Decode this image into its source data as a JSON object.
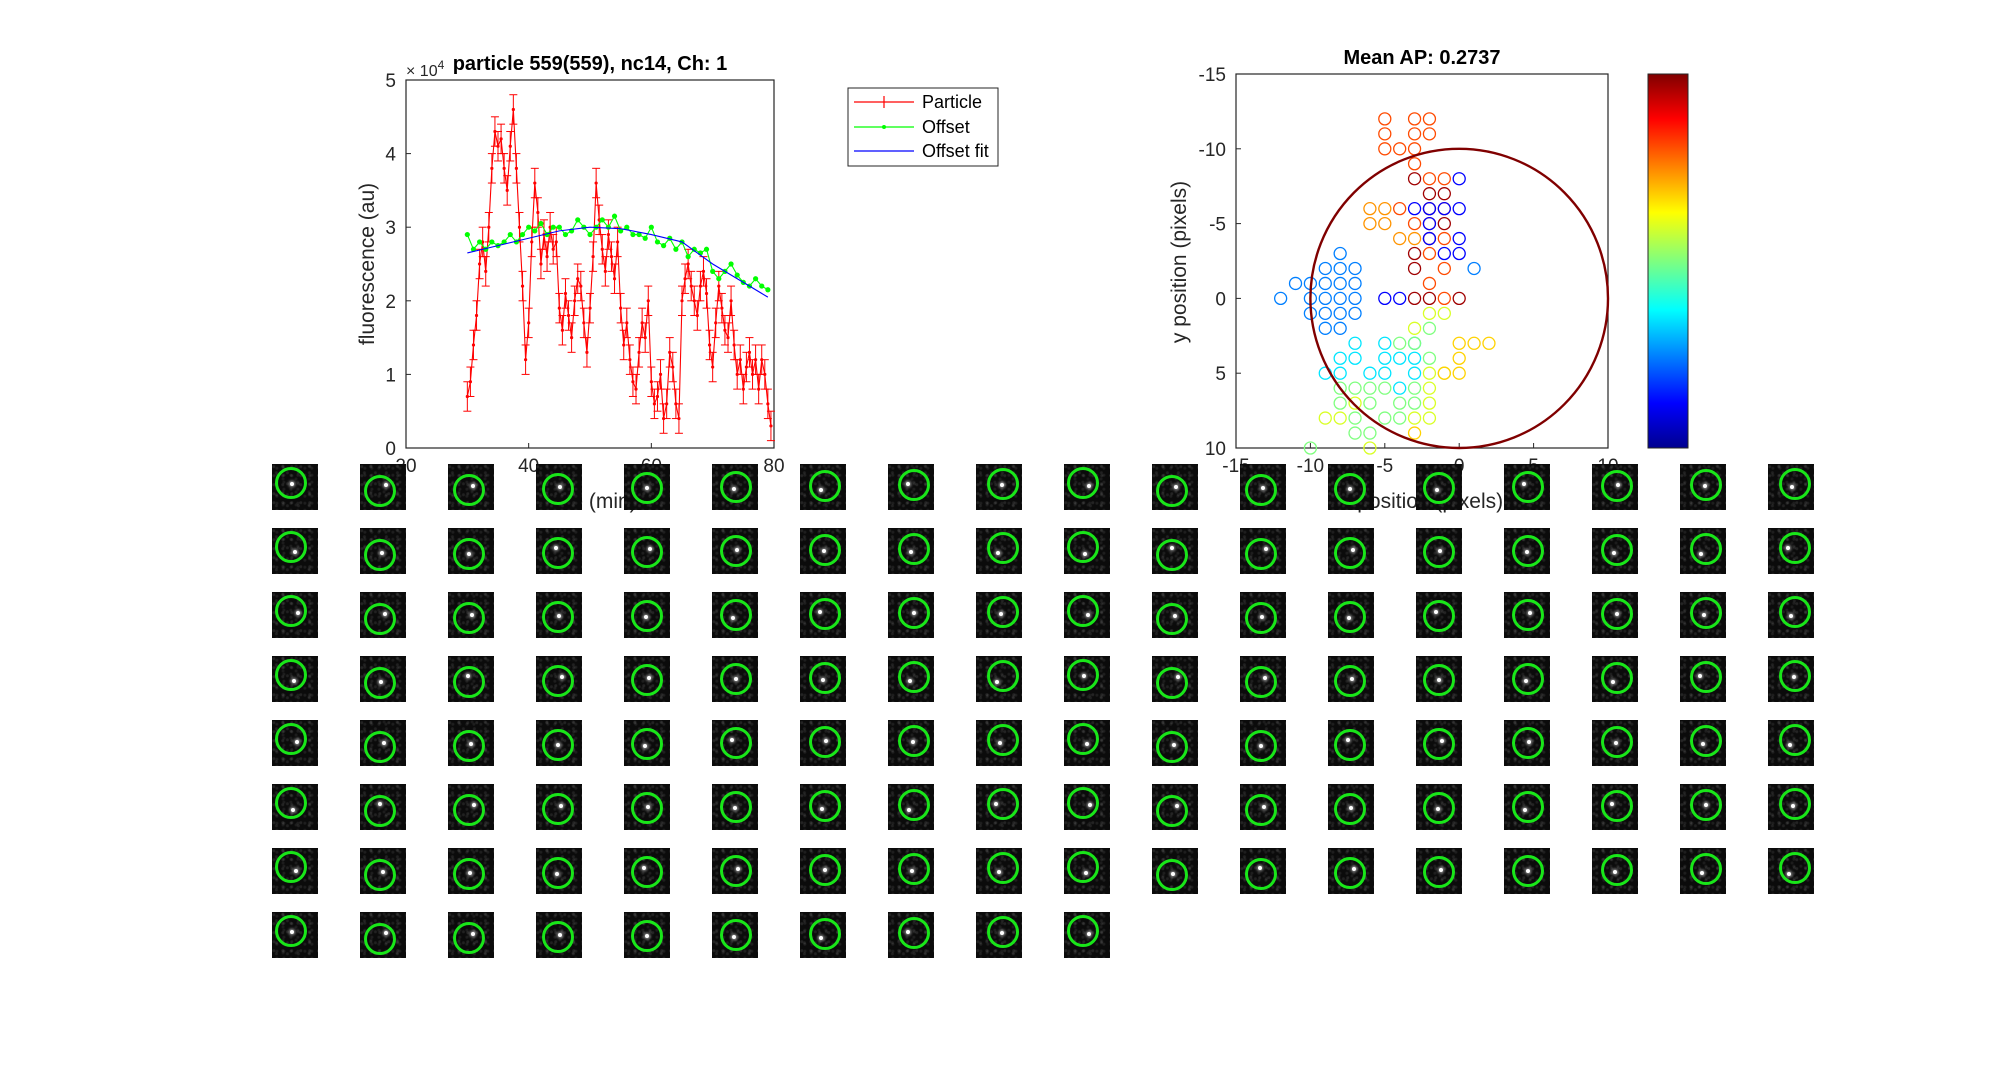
{
  "chart_data": [
    {
      "type": "line",
      "title": "particle 559(559), nc14, Ch: 1",
      "xlabel": "time (min)",
      "ylabel": "fluorescence (au)",
      "xlim": [
        20,
        80
      ],
      "ylim": [
        0,
        50000
      ],
      "xticks": [
        20,
        40,
        60,
        80
      ],
      "yticks": [
        0,
        1,
        2,
        3,
        4,
        5
      ],
      "y_exponent_label": "× 10",
      "y_exponent_value": "4",
      "legend_position": "outside-right",
      "colors": {
        "particle": "#ff0000",
        "offset": "#00ff00",
        "fit": "#0000ff"
      },
      "series": [
        {
          "name": "Particle",
          "x": [
            30,
            30.5,
            31,
            31.5,
            32,
            32.5,
            33,
            33.5,
            34,
            34.5,
            35,
            35.5,
            36,
            36.5,
            37,
            37.5,
            38,
            38.5,
            39,
            39.5,
            40,
            40.5,
            41,
            41.5,
            42,
            42.5,
            43,
            43.5,
            44,
            44.5,
            45,
            45.5,
            46,
            46.5,
            47,
            47.5,
            48,
            48.5,
            49,
            49.5,
            50,
            50.5,
            51,
            51.5,
            52,
            52.5,
            53,
            53.5,
            54,
            54.5,
            55,
            55.5,
            56,
            56.5,
            57,
            57.5,
            58,
            58.5,
            59,
            59.5,
            60,
            60.5,
            61,
            61.5,
            62,
            62.5,
            63,
            63.5,
            64,
            64.5,
            65,
            65.5,
            66,
            66.5,
            67,
            67.5,
            68,
            68.5,
            69,
            69.5,
            70,
            70.5,
            71,
            71.5,
            72,
            72.5,
            73,
            73.5,
            74,
            74.5,
            75,
            75.5,
            76,
            76.5,
            77,
            77.5,
            78,
            78.5,
            79,
            79.5
          ],
          "y": [
            7000,
            9000,
            14000,
            18000,
            25000,
            28000,
            24000,
            30000,
            38000,
            43000,
            41000,
            42000,
            38000,
            35000,
            41000,
            46000,
            38000,
            30000,
            22000,
            12000,
            17000,
            28000,
            36000,
            32000,
            25000,
            29000,
            26000,
            30000,
            27000,
            28000,
            19000,
            16000,
            21000,
            18000,
            15000,
            20000,
            23000,
            22000,
            17000,
            13000,
            19000,
            26000,
            36000,
            31000,
            27000,
            24000,
            29000,
            26000,
            23000,
            28000,
            19000,
            14000,
            17000,
            12000,
            9000,
            8000,
            13000,
            17000,
            15000,
            20000,
            9000,
            6000,
            7000,
            10000,
            4000,
            6000,
            13000,
            11000,
            6000,
            4000,
            20000,
            23000,
            25000,
            22000,
            20000,
            18000,
            22000,
            24000,
            21000,
            14000,
            11000,
            17000,
            22000,
            19000,
            16000,
            15000,
            20000,
            14000,
            10000,
            12000,
            8000,
            11000,
            13000,
            10000,
            12000,
            8000,
            12000,
            10000,
            6000,
            3000
          ],
          "error_bar": 2000
        },
        {
          "name": "Offset",
          "x": [
            30,
            31,
            32,
            33,
            34,
            35,
            36,
            37,
            38,
            39,
            40,
            41,
            42,
            43,
            44,
            45,
            46,
            47,
            48,
            49,
            50,
            51,
            52,
            53,
            54,
            55,
            56,
            57,
            58,
            59,
            60,
            61,
            62,
            63,
            64,
            65,
            66,
            67,
            68,
            69,
            70,
            71,
            72,
            73,
            74,
            75,
            76,
            77,
            78,
            79
          ],
          "y": [
            29000,
            27000,
            28000,
            27000,
            28000,
            27500,
            28000,
            29000,
            28000,
            29000,
            30000,
            29500,
            30500,
            29000,
            30000,
            30000,
            29000,
            29500,
            31000,
            30000,
            29000,
            30000,
            31000,
            30000,
            31500,
            29500,
            30000,
            29000,
            29000,
            28500,
            30000,
            28000,
            27500,
            28500,
            27000,
            28000,
            26000,
            27000,
            26500,
            27000,
            24000,
            23000,
            24000,
            25000,
            23500,
            22500,
            22000,
            23000,
            22000,
            21500
          ],
          "error_bar": 0
        },
        {
          "name": "Offset fit",
          "x": [
            30,
            35,
            40,
            45,
            50,
            55,
            60,
            65,
            70,
            75,
            79
          ],
          "y": [
            26500,
            27500,
            28500,
            29500,
            30000,
            29800,
            29000,
            28000,
            25000,
            22500,
            20500
          ],
          "error_bar": 0
        }
      ]
    },
    {
      "type": "scatter",
      "title": "Mean AP: 0.2737",
      "xlabel": "x position (pixels)",
      "ylabel": "y position (pixels)",
      "xlim": [
        -15,
        10
      ],
      "ylim": [
        -15,
        10
      ],
      "y_direction": "reverse",
      "xticks": [
        -15,
        -10,
        -5,
        0,
        5,
        10
      ],
      "yticks": [
        -15,
        -10,
        -5,
        0,
        5,
        10
      ],
      "circle": {
        "cx": 0,
        "cy": 0,
        "r": 10,
        "color": "#800000"
      },
      "colorbar": {
        "colormap": "jet"
      },
      "points_by_color": [
        {
          "color": "#ff4a00",
          "points": [
            [
              -5,
              -12
            ],
            [
              -3,
              -12
            ],
            [
              -2,
              -12
            ],
            [
              -5,
              -11
            ],
            [
              -3,
              -11
            ],
            [
              -2,
              -11
            ],
            [
              -5,
              -10
            ],
            [
              -4,
              -10
            ],
            [
              -3,
              -10
            ],
            [
              -3,
              -9
            ],
            [
              -2,
              -8
            ],
            [
              -1,
              -8
            ],
            [
              -4,
              -6
            ],
            [
              -1,
              -6
            ],
            [
              -3,
              -5
            ],
            [
              -2,
              -5
            ],
            [
              -1,
              -4
            ],
            [
              -2,
              -3
            ],
            [
              -1,
              -2
            ],
            [
              -2,
              -1
            ],
            [
              -1,
              0
            ]
          ]
        },
        {
          "color": "#ff9400",
          "points": [
            [
              -6,
              -6
            ],
            [
              -5,
              -6
            ],
            [
              -6,
              -5
            ],
            [
              -5,
              -5
            ],
            [
              -4,
              -4
            ],
            [
              -3,
              -4
            ]
          ]
        },
        {
          "color": "#a00000",
          "points": [
            [
              -3,
              -8
            ],
            [
              -2,
              -7
            ],
            [
              -1,
              -7
            ],
            [
              -1,
              -5
            ],
            [
              -2,
              -4
            ],
            [
              -3,
              -3
            ],
            [
              -3,
              -2
            ],
            [
              -3,
              0
            ],
            [
              -2,
              0
            ],
            [
              0,
              0
            ],
            [
              -2,
              -6
            ]
          ]
        },
        {
          "color": "#0000ff",
          "points": [
            [
              0,
              -8
            ],
            [
              -2,
              -6
            ],
            [
              -3,
              -6
            ],
            [
              0,
              -6
            ],
            [
              -1,
              -6
            ],
            [
              -2,
              -5
            ],
            [
              -2,
              -4
            ],
            [
              0,
              -4
            ],
            [
              0,
              -3
            ],
            [
              -1,
              -3
            ],
            [
              -4,
              0
            ],
            [
              -5,
              0
            ]
          ]
        },
        {
          "color": "#007fff",
          "points": [
            [
              1,
              -2
            ],
            [
              -8,
              -3
            ],
            [
              -9,
              -2
            ],
            [
              -8,
              -2
            ],
            [
              -7,
              -2
            ],
            [
              -10,
              -1
            ],
            [
              -9,
              -1
            ],
            [
              -8,
              -1
            ],
            [
              -7,
              -1
            ],
            [
              -11,
              -1
            ],
            [
              -10,
              0
            ],
            [
              -9,
              0
            ],
            [
              -8,
              0
            ],
            [
              -7,
              0
            ],
            [
              -12,
              0
            ],
            [
              -10,
              1
            ],
            [
              -9,
              1
            ],
            [
              -8,
              1
            ],
            [
              -7,
              1
            ],
            [
              -9,
              2
            ],
            [
              -8,
              2
            ]
          ]
        },
        {
          "color": "#00e5ff",
          "points": [
            [
              -7,
              3
            ],
            [
              -5,
              3
            ],
            [
              -3,
              3
            ],
            [
              -8,
              4
            ],
            [
              -7,
              4
            ],
            [
              -5,
              4
            ],
            [
              -4,
              4
            ],
            [
              -3,
              4
            ],
            [
              -9,
              5
            ],
            [
              -8,
              5
            ],
            [
              -6,
              5
            ],
            [
              -5,
              5
            ],
            [
              -3,
              5
            ],
            [
              -4,
              6
            ]
          ]
        },
        {
          "color": "#7fff7f",
          "points": [
            [
              -2,
              2
            ],
            [
              -3,
              3
            ],
            [
              -4,
              3
            ],
            [
              -2,
              4
            ],
            [
              -8,
              6
            ],
            [
              -7,
              6
            ],
            [
              -6,
              6
            ],
            [
              -5,
              6
            ],
            [
              -3,
              6
            ],
            [
              -8,
              7
            ],
            [
              -6,
              7
            ],
            [
              -4,
              7
            ],
            [
              -3,
              7
            ],
            [
              -7,
              8
            ],
            [
              -5,
              8
            ],
            [
              -4,
              8
            ],
            [
              -7,
              9
            ],
            [
              -6,
              9
            ],
            [
              -10,
              10
            ]
          ]
        },
        {
          "color": "#d9ff26",
          "points": [
            [
              -2,
              1
            ],
            [
              -1,
              1
            ],
            [
              -3,
              2
            ],
            [
              -2,
              5
            ],
            [
              -1,
              5
            ],
            [
              -2,
              6
            ],
            [
              -7,
              7
            ],
            [
              -8,
              8
            ],
            [
              -3,
              8
            ],
            [
              -2,
              7
            ],
            [
              -2,
              8
            ],
            [
              -9,
              8
            ],
            [
              -6,
              10
            ]
          ]
        },
        {
          "color": "#ffd200",
          "points": [
            [
              0,
              3
            ],
            [
              1,
              3
            ],
            [
              2,
              3
            ],
            [
              0,
              4
            ],
            [
              -1,
              5
            ],
            [
              0,
              5
            ],
            [
              -3,
              9
            ]
          ]
        }
      ]
    }
  ],
  "legend": {
    "particle": "Particle",
    "offset": "Offset",
    "fit": "Offset fit"
  },
  "montage": {
    "rows": 8,
    "columns": 18,
    "count": 136
  }
}
